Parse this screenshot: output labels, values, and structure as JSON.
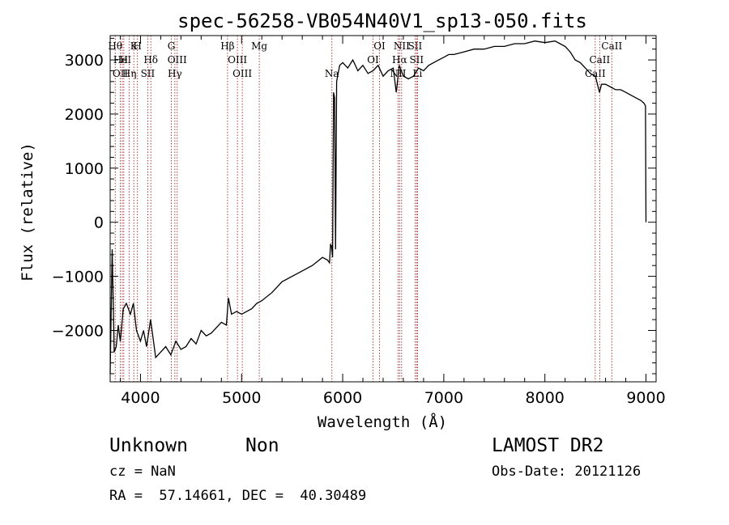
{
  "chart_data": {
    "type": "line",
    "title": "spec-56258-VB054N40V1_sp13-050.fits",
    "xlabel": "Wavelength (Å)",
    "ylabel": "Flux (relative)",
    "xlim": [
      3700,
      9100
    ],
    "ylim": [
      -2950,
      3450
    ],
    "x_ticks": [
      4000,
      5000,
      6000,
      7000,
      8000,
      9000
    ],
    "y_ticks": [
      -2000,
      -1000,
      0,
      1000,
      2000,
      3000
    ],
    "grid": false,
    "series": [
      {
        "x": [
          3700,
          3720,
          3740,
          3760,
          3780,
          3800,
          3830,
          3860,
          3900,
          3930,
          3960,
          4000,
          4030,
          4060,
          4100,
          4150,
          4200,
          4250,
          4300,
          4350,
          4400,
          4450,
          4500,
          4550,
          4600,
          4650,
          4700,
          4750,
          4800,
          4850,
          4870,
          4900,
          4950,
          5000,
          5050,
          5100,
          5150,
          5200,
          5300,
          5400,
          5500,
          5600,
          5700,
          5800,
          5850,
          5870,
          5880,
          5890,
          5900,
          5910,
          5920,
          5930,
          5940,
          5950,
          5960,
          5970,
          6000,
          6050,
          6100,
          6150,
          6200,
          6250,
          6300,
          6350,
          6400,
          6450,
          6500,
          6530,
          6560,
          6600,
          6650,
          6700,
          6750,
          6800,
          6850,
          6900,
          6950,
          7000,
          7050,
          7100,
          7200,
          7300,
          7400,
          7500,
          7600,
          7700,
          7800,
          7900,
          8000,
          8100,
          8150,
          8200,
          8250,
          8300,
          8350,
          8400,
          8450,
          8500,
          8540,
          8560,
          8600,
          8650,
          8700,
          8750,
          8800,
          8850,
          8900,
          8950,
          8980,
          8995,
          9000
        ],
        "y": [
          -2800,
          -500,
          -2400,
          -2300,
          -1900,
          -2200,
          -1600,
          -1500,
          -1700,
          -1500,
          -2000,
          -2200,
          -2000,
          -2300,
          -1800,
          -2500,
          -2400,
          -2300,
          -2450,
          -2200,
          -2350,
          -2300,
          -2150,
          -2250,
          -2000,
          -2100,
          -2050,
          -1950,
          -1850,
          -1900,
          -1400,
          -1700,
          -1650,
          -1700,
          -1650,
          -1600,
          -1500,
          -1450,
          -1300,
          -1100,
          -1000,
          -900,
          -800,
          -650,
          -700,
          -750,
          -400,
          -450,
          -650,
          2400,
          2300,
          -500,
          2600,
          2700,
          2800,
          2900,
          2950,
          2850,
          3000,
          2800,
          2900,
          2750,
          2800,
          2900,
          2700,
          2800,
          2850,
          2400,
          2900,
          2700,
          2650,
          2700,
          2850,
          2800,
          2900,
          2950,
          3000,
          3050,
          3100,
          3100,
          3150,
          3200,
          3200,
          3250,
          3250,
          3300,
          3300,
          3350,
          3320,
          3350,
          3300,
          3250,
          3150,
          3000,
          2950,
          2850,
          2750,
          2700,
          2400,
          2550,
          2550,
          2500,
          2450,
          2450,
          2400,
          2350,
          2300,
          2250,
          2200,
          2150,
          0
        ]
      }
    ],
    "line_markers": [
      {
        "wl": 3750,
        "label": "Hθ",
        "row": 1
      },
      {
        "wl": 3800,
        "label": "OII",
        "row": 3
      },
      {
        "wl": 3820,
        "label": "HeI",
        "row": 2
      },
      {
        "wl": 3835,
        "label": "H",
        "row": 2
      },
      {
        "wl": 3889,
        "label": "Hη",
        "row": 3
      },
      {
        "wl": 3934,
        "label": "K",
        "row": 1
      },
      {
        "wl": 3970,
        "label": "H",
        "row": 1
      },
      {
        "wl": 4102,
        "label": "Hδ",
        "row": 2
      },
      {
        "wl": 4072,
        "label": "SII",
        "row": 3
      },
      {
        "wl": 4305,
        "label": "G",
        "row": 1
      },
      {
        "wl": 4340,
        "label": "Hγ",
        "row": 3
      },
      {
        "wl": 4363,
        "label": "OIII",
        "row": 2
      },
      {
        "wl": 4861,
        "label": "Hβ",
        "row": 1
      },
      {
        "wl": 4959,
        "label": "OIII",
        "row": 2
      },
      {
        "wl": 5007,
        "label": "OIII",
        "row": 3
      },
      {
        "wl": 5175,
        "label": "Mg",
        "row": 1
      },
      {
        "wl": 5893,
        "label": "Na",
        "row": 3
      },
      {
        "wl": 6300,
        "label": "OI",
        "row": 2
      },
      {
        "wl": 6364,
        "label": "OI",
        "row": 1
      },
      {
        "wl": 6548,
        "label": "NII",
        "row": 3
      },
      {
        "wl": 6563,
        "label": "Hα",
        "row": 2
      },
      {
        "wl": 6583,
        "label": "NII",
        "row": 1
      },
      {
        "wl": 6716,
        "label": "SII",
        "row": 1
      },
      {
        "wl": 6731,
        "label": "SII",
        "row": 2
      },
      {
        "wl": 6740,
        "label": "Li",
        "row": 3
      },
      {
        "wl": 8498,
        "label": "CaII",
        "row": 3
      },
      {
        "wl": 8542,
        "label": "CaII",
        "row": 2
      },
      {
        "wl": 8662,
        "label": "CaII",
        "row": 1
      }
    ],
    "colors": {
      "spectrum": "#000000",
      "markers": "#a0282c"
    }
  },
  "info": {
    "class_label": "Unknown",
    "subclass_label": "Non",
    "survey": "LAMOST DR2",
    "cz": "cz = NaN",
    "obs_date": "Obs-Date: 20121126",
    "coords": "RA =  57.14661, DEC =  40.30489"
  }
}
